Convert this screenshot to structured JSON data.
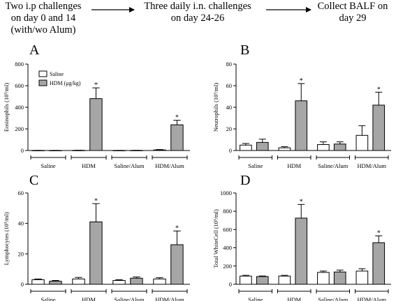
{
  "colors": {
    "saline_fill": "#ffffff",
    "hdm_fill": "#a6a6a6",
    "ink": "#000000"
  },
  "header": {
    "steps": [
      {
        "lines": [
          "Two i.p challenges",
          "on day 0 and 14",
          "(with/wo Alum)"
        ]
      },
      {
        "lines": [
          "Three daily i.n. challenges",
          "on day 24-26"
        ]
      },
      {
        "lines": [
          "Collect BALF on",
          "day 29"
        ]
      }
    ]
  },
  "legend": {
    "saline_label": "Saline",
    "hdm_label": "HDM (μg/kg)"
  },
  "chart_data": [
    {
      "type": "bar",
      "panel_label": "A",
      "ylabel": "Eosinophils (10³/ml)",
      "ylim": [
        0,
        800
      ],
      "yticks": [
        0,
        200,
        400,
        600,
        800
      ],
      "groups": [
        "Saline",
        "HDM",
        "Saline/Alum",
        "HDM/Alum"
      ],
      "legend": "top-left",
      "series": [
        {
          "name": "Saline",
          "values": [
            0.5,
            1.5,
            0.5,
            5
          ],
          "errors": [
            0.5,
            1,
            0.5,
            4
          ]
        },
        {
          "name": "HDM (μg/kg)",
          "values": [
            0.5,
            480,
            1,
            238
          ],
          "errors": [
            0.5,
            100,
            0.5,
            42
          ]
        }
      ],
      "significant": [
        false,
        true,
        false,
        true
      ]
    },
    {
      "type": "bar",
      "panel_label": "B",
      "ylabel": "Neutrophils (10³/ml)",
      "ylim": [
        0,
        80
      ],
      "yticks": [
        0,
        20,
        40,
        60,
        80
      ],
      "groups": [
        "Saline",
        "HDM",
        "Saline/Alum",
        "HDM/Alum"
      ],
      "series": [
        {
          "name": "Saline",
          "values": [
            5,
            2.5,
            5.5,
            14
          ],
          "errors": [
            1.5,
            1,
            2.5,
            9
          ]
        },
        {
          "name": "HDM (μg/kg)",
          "values": [
            7.5,
            46,
            6,
            42
          ],
          "errors": [
            3,
            16,
            2,
            12
          ]
        }
      ],
      "significant": [
        false,
        true,
        false,
        true
      ]
    },
    {
      "type": "bar",
      "panel_label": "C",
      "ylabel": "Lymphocytes (10³/ml)",
      "ylim": [
        0,
        60
      ],
      "yticks": [
        0,
        20,
        40,
        60
      ],
      "groups": [
        "Saline",
        "HDM",
        "Saline/Alum",
        "HDM/Alum"
      ],
      "series": [
        {
          "name": "Saline",
          "values": [
            3,
            3.5,
            2.5,
            3.5
          ],
          "errors": [
            0.5,
            1,
            0.5,
            0.8
          ]
        },
        {
          "name": "HDM (μg/kg)",
          "values": [
            2,
            41,
            4,
            26
          ],
          "errors": [
            0.5,
            12,
            0.8,
            9
          ]
        }
      ],
      "significant": [
        false,
        true,
        false,
        true
      ]
    },
    {
      "type": "bar",
      "panel_label": "D",
      "ylabel": "Total WhiteCell (10³/ml)",
      "ylim": [
        0,
        1000
      ],
      "yticks": [
        0,
        200,
        400,
        600,
        800,
        1000
      ],
      "groups": [
        "Saline",
        "HDM",
        "Saline/Alum",
        "HDM/Alum"
      ],
      "series": [
        {
          "name": "Saline",
          "values": [
            90,
            90,
            130,
            145
          ],
          "errors": [
            8,
            8,
            15,
            25
          ]
        },
        {
          "name": "HDM (μg/kg)",
          "values": [
            85,
            725,
            135,
            455
          ],
          "errors": [
            6,
            150,
            20,
            75
          ]
        }
      ],
      "significant": [
        false,
        true,
        false,
        true
      ]
    }
  ]
}
